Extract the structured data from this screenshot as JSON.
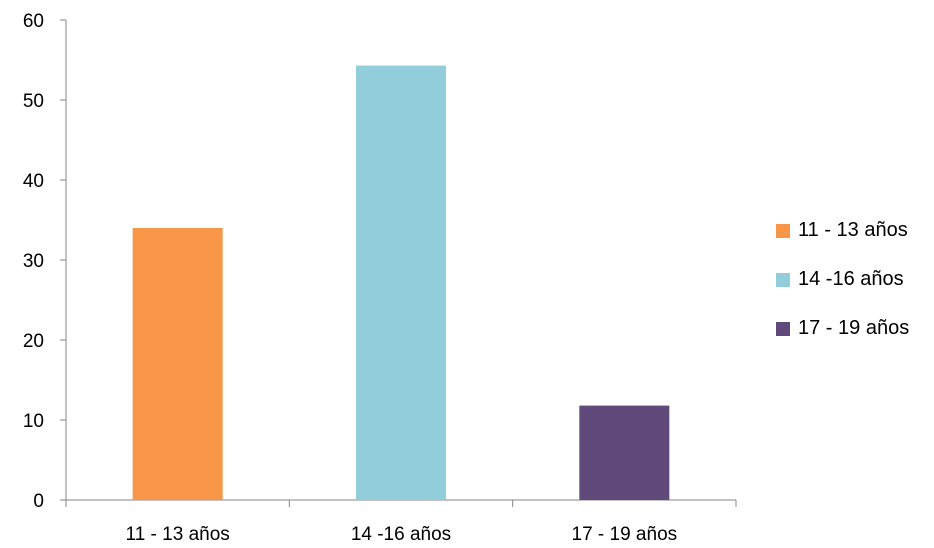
{
  "chart_data": {
    "type": "bar",
    "categories": [
      "11 - 13 años",
      "14 -16 años",
      "17 - 19 años"
    ],
    "values": [
      34,
      54.3,
      11.8
    ],
    "colors": [
      "#f79646",
      "#92cddc",
      "#604a7b"
    ],
    "ylim": [
      0,
      60
    ],
    "yticks": [
      0,
      10,
      20,
      30,
      40,
      50,
      60
    ],
    "title": "",
    "xlabel": "",
    "ylabel": "",
    "grid": false,
    "legend_position": "right",
    "legend": [
      "11 - 13 años",
      "14 -16 años",
      "17 - 19 años"
    ]
  }
}
